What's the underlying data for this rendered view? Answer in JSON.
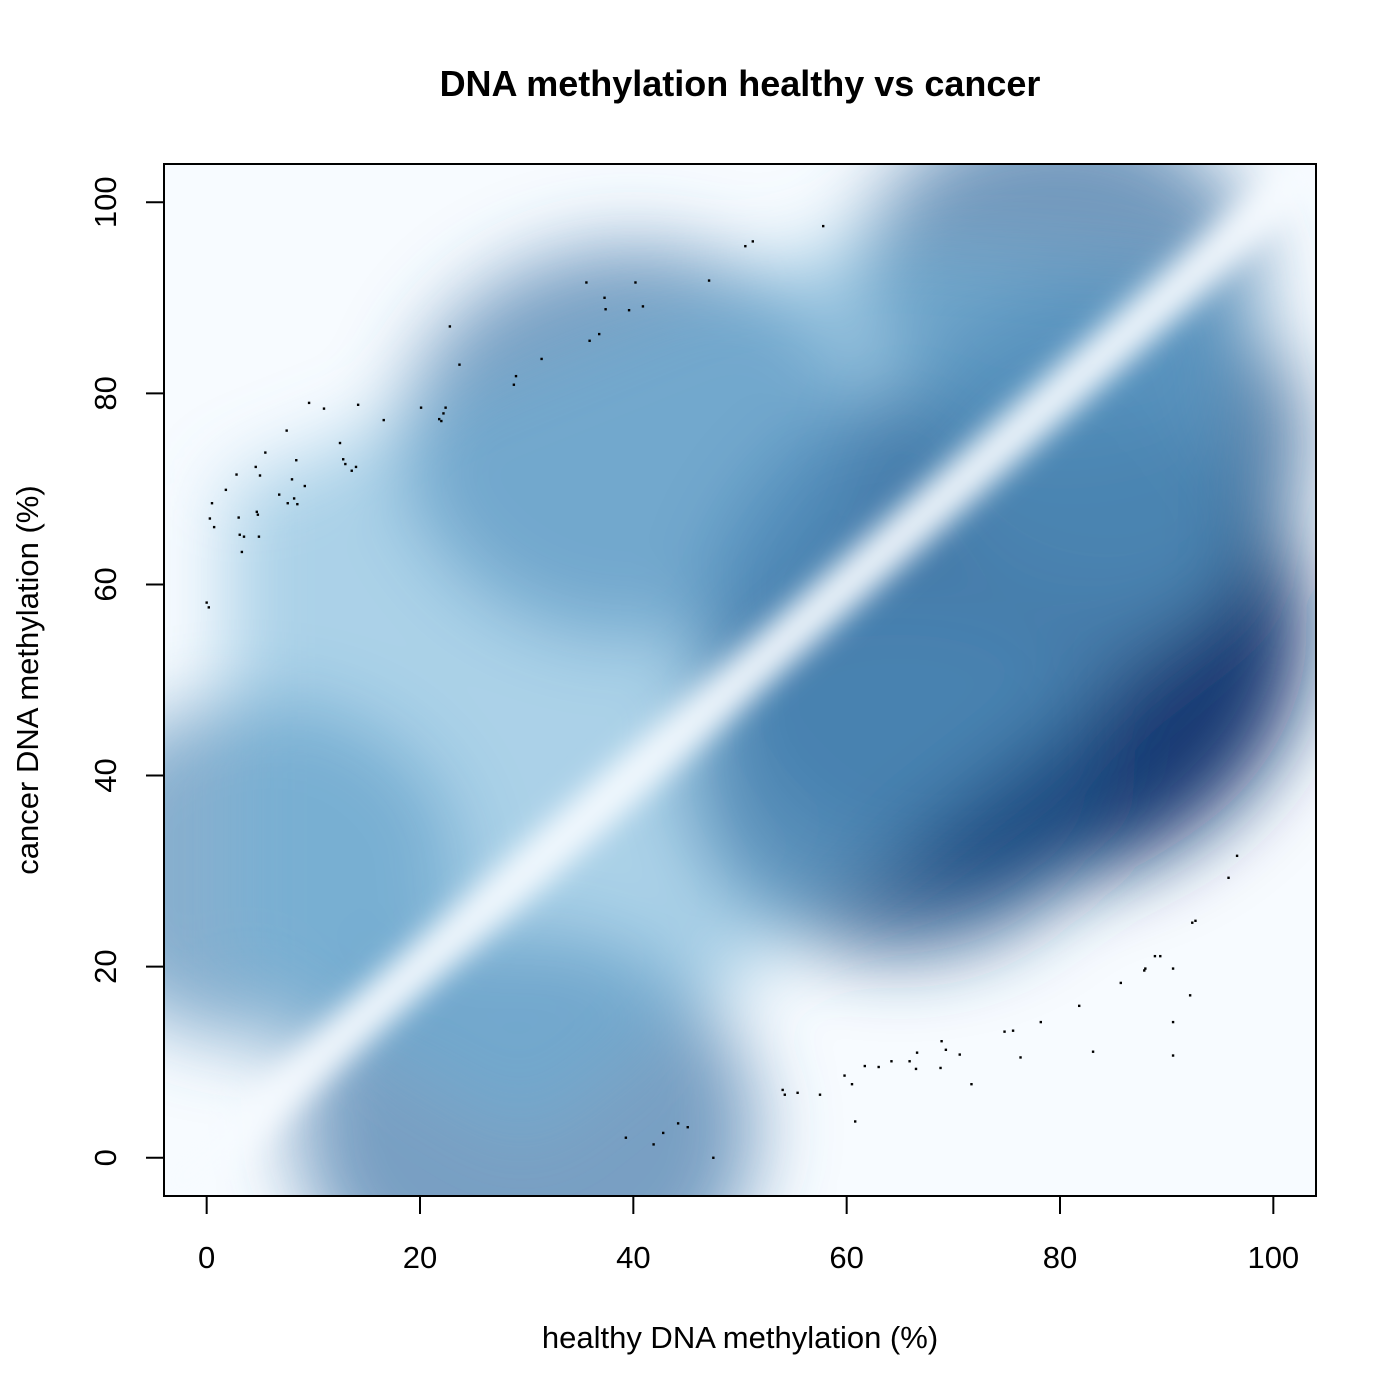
{
  "chart_data": {
    "type": "scatter",
    "subtype": "smoothed density scatter",
    "title": "DNA methylation healthy vs cancer",
    "xlabel": "healthy DNA methylation (%)",
    "ylabel": "cancer DNA methylation (%)",
    "xlim": [
      -4,
      104
    ],
    "ylim": [
      -4,
      104
    ],
    "xticks": [
      0,
      20,
      40,
      60,
      80,
      100
    ],
    "yticks": [
      0,
      20,
      40,
      60,
      80,
      100
    ],
    "grid": false,
    "legend": "none",
    "colors": {
      "density_low": "#f7fbff",
      "density_mid": "#6baed6",
      "density_high": "#08306b",
      "points": "#000000"
    },
    "density_clusters": [
      {
        "x": 75,
        "y": 55,
        "weight": 1.0
      },
      {
        "x": 65,
        "y": 40,
        "weight": 0.75
      },
      {
        "x": 85,
        "y": 75,
        "weight": 0.7
      },
      {
        "x": 30,
        "y": 3,
        "weight": 0.45
      },
      {
        "x": 5,
        "y": 30,
        "weight": 0.35
      },
      {
        "x": 40,
        "y": 75,
        "weight": 0.45
      },
      {
        "x": 80,
        "y": 92,
        "weight": 0.5
      }
    ],
    "outlier_points": [
      [
        0.0,
        58.1
      ],
      [
        0.2,
        57.6
      ],
      [
        0.3,
        66.9
      ],
      [
        0.5,
        68.5
      ],
      [
        0.7,
        66.0
      ],
      [
        1.8,
        69.9
      ],
      [
        2.8,
        71.5
      ],
      [
        3.0,
        67.0
      ],
      [
        3.1,
        65.2
      ],
      [
        3.5,
        65.0
      ],
      [
        3.3,
        63.4
      ],
      [
        4.6,
        72.3
      ],
      [
        4.7,
        67.6
      ],
      [
        4.8,
        67.3
      ],
      [
        4.9,
        65.0
      ],
      [
        5.0,
        71.4
      ],
      [
        5.5,
        73.8
      ],
      [
        6.8,
        69.4
      ],
      [
        7.5,
        76.1
      ],
      [
        7.6,
        68.5
      ],
      [
        8.0,
        71.0
      ],
      [
        8.2,
        69.0
      ],
      [
        8.5,
        68.4
      ],
      [
        8.4,
        73.0
      ],
      [
        9.2,
        70.3
      ],
      [
        9.6,
        79.0
      ],
      [
        11.0,
        78.4
      ],
      [
        12.5,
        74.8
      ],
      [
        12.8,
        73.1
      ],
      [
        13.0,
        72.6
      ],
      [
        13.6,
        71.9
      ],
      [
        14.0,
        72.3
      ],
      [
        14.2,
        78.8
      ],
      [
        16.6,
        77.2
      ],
      [
        20.1,
        78.5
      ],
      [
        21.8,
        77.3
      ],
      [
        22.0,
        77.1
      ],
      [
        22.2,
        77.9
      ],
      [
        22.4,
        78.5
      ],
      [
        22.8,
        87.0
      ],
      [
        23.7,
        83.0
      ],
      [
        28.8,
        80.9
      ],
      [
        29.0,
        81.8
      ],
      [
        31.4,
        83.6
      ],
      [
        35.6,
        91.6
      ],
      [
        35.9,
        85.5
      ],
      [
        36.8,
        86.2
      ],
      [
        37.3,
        90.0
      ],
      [
        37.4,
        88.8
      ],
      [
        39.6,
        88.7
      ],
      [
        40.2,
        91.6
      ],
      [
        40.9,
        89.1
      ],
      [
        47.1,
        91.8
      ],
      [
        50.5,
        95.4
      ],
      [
        51.2,
        95.9
      ],
      [
        57.8,
        97.5
      ],
      [
        39.3,
        2.1
      ],
      [
        41.9,
        1.4
      ],
      [
        42.8,
        2.6
      ],
      [
        44.2,
        3.6
      ],
      [
        45.1,
        3.2
      ],
      [
        47.5,
        0.0
      ],
      [
        54.0,
        7.1
      ],
      [
        54.2,
        6.6
      ],
      [
        55.4,
        6.8
      ],
      [
        57.5,
        6.6
      ],
      [
        59.8,
        8.6
      ],
      [
        60.5,
        7.7
      ],
      [
        60.8,
        3.8
      ],
      [
        61.7,
        9.6
      ],
      [
        63.0,
        9.5
      ],
      [
        64.2,
        10.1
      ],
      [
        65.9,
        10.1
      ],
      [
        66.5,
        9.3
      ],
      [
        66.6,
        11.0
      ],
      [
        68.8,
        9.4
      ],
      [
        68.9,
        12.2
      ],
      [
        69.3,
        11.3
      ],
      [
        70.6,
        10.8
      ],
      [
        71.7,
        7.7
      ],
      [
        74.8,
        13.2
      ],
      [
        75.6,
        13.3
      ],
      [
        76.3,
        10.5
      ],
      [
        78.2,
        14.2
      ],
      [
        81.8,
        15.9
      ],
      [
        83.1,
        11.1
      ],
      [
        85.7,
        18.3
      ],
      [
        87.9,
        19.6
      ],
      [
        88.0,
        19.8
      ],
      [
        88.9,
        21.1
      ],
      [
        89.4,
        21.1
      ],
      [
        90.6,
        19.8
      ],
      [
        90.6,
        14.2
      ],
      [
        90.6,
        10.7
      ],
      [
        92.2,
        17.0
      ],
      [
        92.4,
        24.6
      ],
      [
        92.7,
        24.8
      ],
      [
        95.8,
        29.3
      ],
      [
        96.6,
        31.6
      ]
    ]
  }
}
